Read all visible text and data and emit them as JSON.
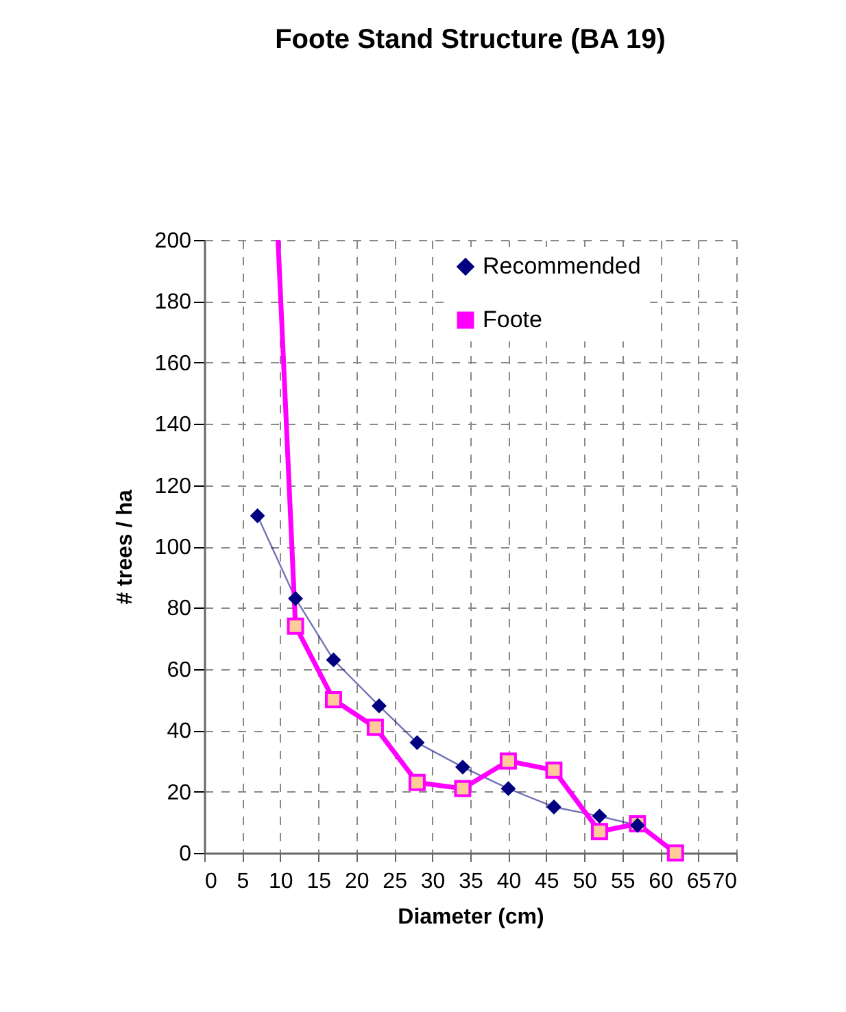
{
  "chart_data": {
    "type": "line",
    "title": "Foote Stand Structure (BA 19)",
    "xlabel": "Diameter (cm)",
    "ylabel": "# trees / ha",
    "xlim": [
      0,
      70
    ],
    "xticks": [
      0,
      5,
      10,
      15,
      20,
      25,
      30,
      35,
      40,
      45,
      50,
      55,
      60,
      65,
      70
    ],
    "ylim": [
      0,
      200
    ],
    "yticks": [
      0,
      20,
      40,
      60,
      80,
      100,
      120,
      140,
      160,
      180,
      200
    ],
    "grid": true,
    "legend": "top right",
    "series": [
      {
        "name": "Recommended",
        "color": "#000080",
        "marker": "diamond",
        "x": [
          7,
          12,
          17,
          23,
          28,
          34,
          40,
          46,
          52,
          57
        ],
        "values": [
          110,
          83,
          63,
          48,
          36,
          28,
          21,
          15,
          12,
          9
        ]
      },
      {
        "name": "Foote",
        "color": "#ff00ff",
        "marker": "square",
        "x": [
          12,
          17,
          22.5,
          28,
          34,
          40,
          46,
          52,
          57,
          62
        ],
        "values": [
          74,
          50,
          41,
          23,
          21,
          30,
          27,
          7,
          9.5,
          0
        ]
      },
      {
        "color": "#ff00ff",
        "x": [
          9.7,
          12
        ],
        "values": [
          200,
          74
        ]
      }
    ]
  }
}
